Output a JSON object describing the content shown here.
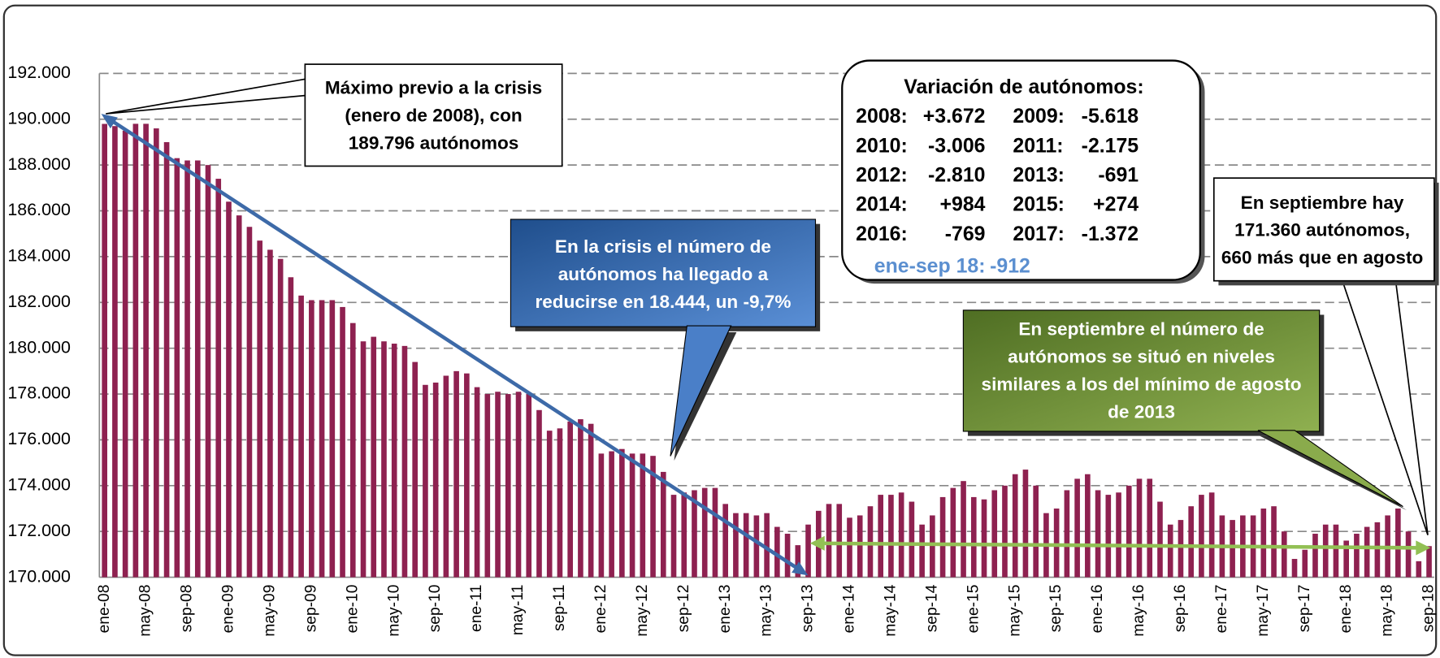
{
  "chart_data": {
    "type": "bar",
    "color": "#8e2150",
    "categories": [
      "ene-08",
      null,
      null,
      null,
      "may-08",
      null,
      null,
      null,
      "sep-08",
      null,
      null,
      null,
      "ene-09",
      null,
      null,
      null,
      "may-09",
      null,
      null,
      null,
      "sep-09",
      null,
      null,
      null,
      "ene-10",
      null,
      null,
      null,
      "may-10",
      null,
      null,
      null,
      "sep-10",
      null,
      null,
      null,
      "ene-11",
      null,
      null,
      null,
      "may-11",
      null,
      null,
      null,
      "sep-11",
      null,
      null,
      null,
      "ene-12",
      null,
      null,
      null,
      "may-12",
      null,
      null,
      null,
      "sep-12",
      null,
      null,
      null,
      "ene-13",
      null,
      null,
      null,
      "may-13",
      null,
      null,
      null,
      "sep-13",
      null,
      null,
      null,
      "ene-14",
      null,
      null,
      null,
      "may-14",
      null,
      null,
      null,
      "sep-14",
      null,
      null,
      null,
      "ene-15",
      null,
      null,
      null,
      "may-15",
      null,
      null,
      null,
      "sep-15",
      null,
      null,
      null,
      "ene-16",
      null,
      null,
      null,
      "may-16",
      null,
      null,
      null,
      "sep-16",
      null,
      null,
      null,
      "ene-17",
      null,
      null,
      null,
      "may-17",
      null,
      null,
      null,
      "sep-17",
      null,
      null,
      null,
      "ene-18",
      null,
      null,
      null,
      "may-18",
      null,
      null,
      null,
      "sep-18"
    ],
    "values": [
      189796,
      189700,
      189500,
      189800,
      189800,
      189600,
      189000,
      188300,
      188200,
      188200,
      188000,
      187400,
      186400,
      185800,
      185300,
      184700,
      184300,
      183900,
      183100,
      182300,
      182100,
      182100,
      182100,
      181800,
      181100,
      180300,
      180500,
      180300,
      180200,
      180100,
      179400,
      178400,
      178500,
      178800,
      179000,
      178900,
      178300,
      178000,
      178100,
      178000,
      178100,
      178000,
      177300,
      176400,
      176500,
      176800,
      176900,
      176700,
      175400,
      175500,
      175600,
      175400,
      175400,
      175300,
      174600,
      173600,
      173700,
      173800,
      173900,
      173900,
      173200,
      172800,
      172800,
      172700,
      172800,
      172200,
      171900,
      171400,
      172300,
      172900,
      173200,
      173200,
      172600,
      172700,
      173100,
      173600,
      173600,
      173700,
      173300,
      172300,
      172700,
      173500,
      173900,
      174200,
      173500,
      173400,
      173800,
      174000,
      174500,
      174700,
      174000,
      172800,
      173000,
      173800,
      174300,
      174500,
      173800,
      173600,
      173700,
      174000,
      174300,
      174300,
      173300,
      172300,
      172500,
      173100,
      173600,
      173700,
      172700,
      172500,
      172700,
      172700,
      173000,
      173100,
      172000,
      170800,
      171200,
      171900,
      172300,
      172300,
      171600,
      171900,
      172200,
      172400,
      172700,
      173000,
      172000,
      170700,
      171360
    ],
    "ylim": [
      170000,
      192000
    ],
    "yticks": [
      {
        "value": 170000,
        "label": "170.000"
      },
      {
        "value": 172000,
        "label": "172.000"
      },
      {
        "value": 174000,
        "label": "174.000"
      },
      {
        "value": 176000,
        "label": "176.000"
      },
      {
        "value": 178000,
        "label": "178.000"
      },
      {
        "value": 180000,
        "label": "180.000"
      },
      {
        "value": 182000,
        "label": "182.000"
      },
      {
        "value": 184000,
        "label": "184.000"
      },
      {
        "value": 186000,
        "label": "186.000"
      },
      {
        "value": 188000,
        "label": "188.000"
      },
      {
        "value": 190000,
        "label": "190.000"
      },
      {
        "value": 192000,
        "label": "192.000"
      }
    ],
    "grid": true,
    "annotations": {
      "max": [
        "Máximo previo a la crisis",
        "(enero de 2008), con",
        "189.796  autónomos"
      ],
      "crisis": [
        "En la crisis el número de",
        "autónomos ha llegado a",
        "reducirse en 18.444,  un -9,7%"
      ],
      "september_level": [
        "En septiembre el número de",
        "autónomos se situó en niveles",
        "similares  a los del mínimo de agosto",
        "de 2013"
      ],
      "september_count": [
        "En septiembre hay",
        "171.360  autónomos,",
        "660 más que en agosto"
      ],
      "variation": {
        "title": "Variación de autónomos:",
        "rows": [
          [
            "2008:",
            "+3.672",
            "2009:",
            "-5.618"
          ],
          [
            "2010:",
            "-3.006",
            "2011:",
            "-2.175"
          ],
          [
            "2012:",
            "-2.810",
            "2013:",
            "-691"
          ],
          [
            "2014:",
            "+984",
            "2015:",
            "+274"
          ],
          [
            "2016:",
            "-769",
            "2017:",
            "-1.372"
          ]
        ],
        "last": [
          "ene-sep 18:",
          "-912"
        ]
      }
    }
  }
}
